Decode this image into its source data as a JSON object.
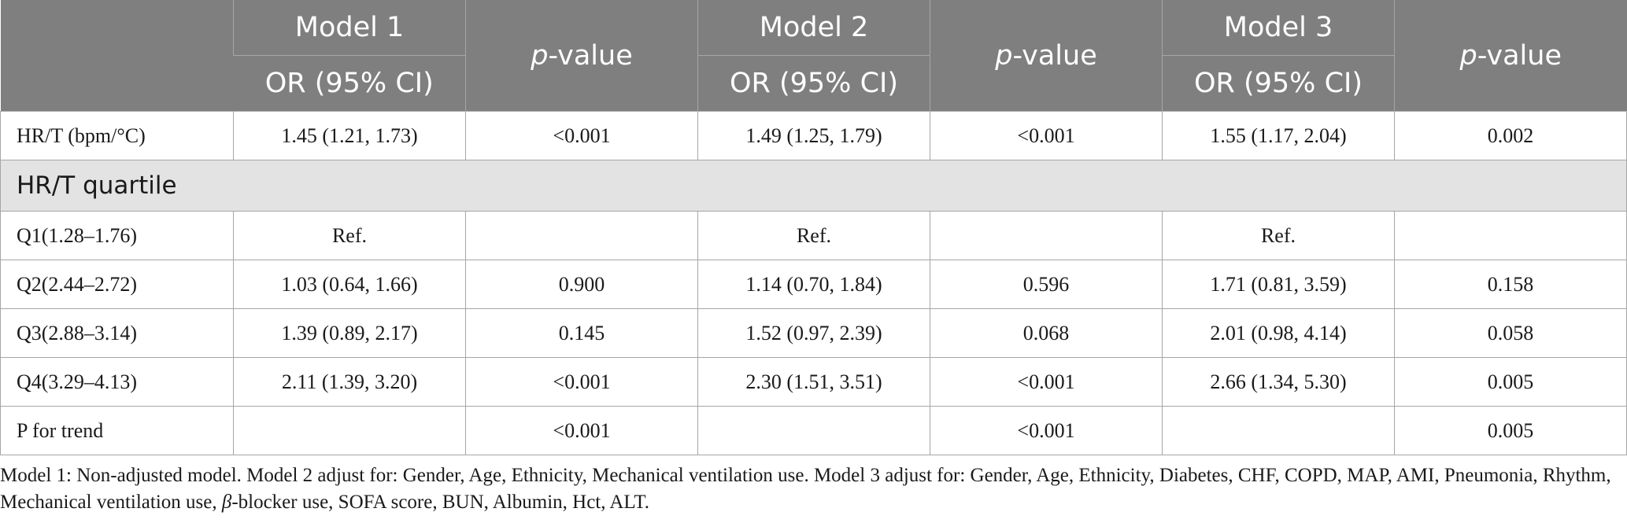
{
  "header": {
    "models": [
      "Model 1",
      "Model 2",
      "Model 3"
    ],
    "or_label": "OR (95% CI)",
    "p_italic": "p",
    "p_rest": "-value"
  },
  "rows": [
    {
      "label": "HR/T (bpm/°C)",
      "m1_or": "1.45 (1.21, 1.73)",
      "m1_p": "<0.001",
      "m2_or": "1.49 (1.25, 1.79)",
      "m2_p": "<0.001",
      "m3_or": "1.55 (1.17, 2.04)",
      "m3_p": "0.002"
    }
  ],
  "section_label": "HR/T quartile",
  "quartile_rows": [
    {
      "label": "Q1(1.28–1.76)",
      "m1_or": "Ref.",
      "m1_p": "",
      "m2_or": "Ref.",
      "m2_p": "",
      "m3_or": "Ref.",
      "m3_p": ""
    },
    {
      "label": "Q2(2.44–2.72)",
      "m1_or": "1.03 (0.64, 1.66)",
      "m1_p": "0.900",
      "m2_or": "1.14 (0.70, 1.84)",
      "m2_p": "0.596",
      "m3_or": "1.71 (0.81, 3.59)",
      "m3_p": "0.158"
    },
    {
      "label": "Q3(2.88–3.14)",
      "m1_or": "1.39 (0.89, 2.17)",
      "m1_p": "0.145",
      "m2_or": "1.52 (0.97, 2.39)",
      "m2_p": "0.068",
      "m3_or": "2.01 (0.98, 4.14)",
      "m3_p": "0.058"
    },
    {
      "label": "Q4(3.29–4.13)",
      "m1_or": "2.11 (1.39, 3.20)",
      "m1_p": "<0.001",
      "m2_or": "2.30 (1.51, 3.51)",
      "m2_p": "<0.001",
      "m3_or": "2.66 (1.34, 5.30)",
      "m3_p": "0.005"
    },
    {
      "label": "P for trend",
      "m1_or": "",
      "m1_p": "<0.001",
      "m2_or": "",
      "m2_p": "<0.001",
      "m3_or": "",
      "m3_p": "0.005"
    }
  ],
  "footnote": {
    "part1": "Model 1: Non-adjusted model. Model 2 adjust for: Gender, Age, Ethnicity, Mechanical ventilation use. Model 3 adjust for: Gender, Age, Ethnicity, Diabetes, CHF, COPD, MAP, AMI, Pneumonia, Rhythm, Mechanical ventilation use, ",
    "beta": "β",
    "part2": "-blocker use, SOFA score, BUN, Albumin, Hct, ALT."
  }
}
